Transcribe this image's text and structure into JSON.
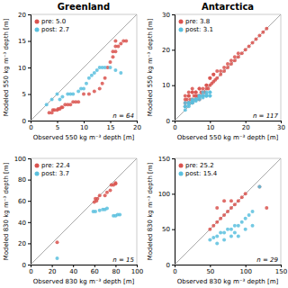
{
  "chart_data": [
    {
      "type": "scatter",
      "title": "Greenland",
      "xlabel": "Observed 550 kg m⁻³ depth [m]",
      "ylabel": "Modeled 550 kg m⁻³ depth [m]",
      "xlim": [
        0,
        20
      ],
      "ylim": [
        0,
        20
      ],
      "xticks": [
        0,
        5,
        10,
        15,
        20
      ],
      "yticks": [
        0,
        5,
        10,
        15,
        20
      ],
      "annotation": "n = 64",
      "legend": "upper left",
      "series": [
        {
          "name": "pre: 5.0",
          "color": "#d9534f",
          "x": [
            3.5,
            4,
            4.2,
            4.5,
            5,
            5.2,
            5.5,
            5.8,
            6,
            6.5,
            7,
            7.5,
            8,
            8.5,
            9,
            10,
            11,
            12,
            13,
            13.5,
            14,
            14.5,
            15,
            15.5,
            15.5,
            16,
            16,
            16.5,
            17,
            17.5,
            18,
            16
          ],
          "values": [
            1.5,
            1.5,
            2,
            2,
            2,
            2.2,
            2.2,
            2.5,
            2.5,
            3,
            3,
            3,
            3.5,
            3.5,
            3.5,
            5,
            5,
            5.5,
            6,
            7,
            8,
            10,
            11,
            12,
            13,
            13,
            14,
            14,
            14.5,
            15,
            15,
            15
          ]
        },
        {
          "name": "post: 2.7",
          "color": "#5bc0de",
          "x": [
            3,
            4,
            5,
            5.5,
            6,
            7,
            7.5,
            8,
            9,
            9.5,
            10,
            10.5,
            11,
            11.5,
            12,
            12.5,
            13,
            13.5,
            14,
            15,
            16,
            17
          ],
          "values": [
            3,
            4,
            5,
            4,
            4.5,
            5,
            5,
            5,
            5.5,
            6,
            6,
            7,
            8,
            8.5,
            9,
            9.5,
            10,
            10,
            10,
            10,
            9.5,
            9
          ]
        }
      ]
    },
    {
      "type": "scatter",
      "title": "Antarctica",
      "xlabel": "Observed 550 kg m⁻³ depth [m]",
      "ylabel": "Modeled 550 kg m⁻³ depth [m]",
      "xlim": [
        0,
        30
      ],
      "ylim": [
        0,
        30
      ],
      "xticks": [
        0,
        10,
        20,
        30
      ],
      "yticks": [
        0,
        10,
        20,
        30
      ],
      "annotation": "n = 117",
      "legend": "upper left",
      "series": [
        {
          "name": "pre: 3.8",
          "color": "#d9534f",
          "x": [
            3,
            3.5,
            4,
            4,
            4.5,
            5,
            5,
            5.5,
            6,
            6,
            6.5,
            7,
            7,
            7.5,
            8,
            8,
            8.5,
            9,
            9,
            9.5,
            10,
            10,
            10.5,
            11,
            11,
            11.5,
            12,
            13,
            14,
            15,
            16,
            17,
            18,
            19,
            20,
            21,
            22,
            23,
            24,
            25,
            26,
            4,
            5,
            6,
            7,
            8,
            9,
            10,
            11,
            12,
            13,
            14,
            15,
            16,
            17,
            18,
            3,
            4,
            5,
            6,
            7,
            3,
            4,
            5,
            6,
            7,
            3
          ],
          "values": [
            5,
            6,
            5,
            8,
            6,
            6,
            9,
            7,
            7,
            8,
            7,
            7,
            9,
            8,
            8,
            9,
            8,
            9,
            10,
            9,
            10,
            12,
            10.5,
            11,
            13,
            11.5,
            12,
            13,
            14,
            15,
            16,
            17,
            18,
            19,
            20,
            21,
            22,
            23,
            24,
            25,
            26,
            7,
            8,
            6,
            6,
            7,
            10,
            12,
            13,
            14,
            14,
            15,
            16,
            17,
            18,
            19,
            7,
            7,
            8,
            8,
            9,
            4,
            5,
            5,
            6,
            7,
            6
          ]
        },
        {
          "name": "post: 3.1",
          "color": "#5bc0de",
          "x": [
            3,
            4,
            5,
            6,
            7,
            8,
            9,
            10,
            4,
            5,
            6,
            7,
            8,
            9,
            10,
            5,
            6,
            7,
            8,
            9,
            10,
            3,
            4,
            5,
            6,
            7,
            8,
            9,
            3,
            4,
            5,
            6,
            7,
            8,
            9,
            10,
            3
          ],
          "values": [
            3,
            4,
            5,
            6,
            7,
            7,
            7,
            7,
            5,
            5.5,
            6,
            6.5,
            7,
            7,
            8,
            6,
            6,
            7,
            8,
            8,
            7,
            4,
            4.5,
            5,
            5.5,
            6,
            6.5,
            7,
            5,
            5,
            5.5,
            6,
            6.5,
            7,
            7.5,
            8,
            4
          ]
        }
      ]
    },
    {
      "type": "scatter",
      "xlabel": "Observed 830 kg m⁻³ depth [m]",
      "ylabel": "Modeled 830 kg m⁻³ depth [m]",
      "xlim": [
        0,
        100
      ],
      "ylim": [
        0,
        100
      ],
      "xticks": [
        0,
        20,
        40,
        60,
        80,
        100
      ],
      "yticks": [
        0,
        20,
        40,
        60,
        80,
        100
      ],
      "annotation": "n = 15",
      "legend": "upper left",
      "series": [
        {
          "name": "pre: 22.4",
          "color": "#d9534f",
          "x": [
            25,
            60,
            61,
            62,
            63,
            65,
            70,
            72,
            75,
            76,
            78,
            80,
            80
          ],
          "values": [
            21,
            59,
            62,
            60,
            62,
            65,
            65,
            68,
            70,
            75,
            75,
            76,
            77
          ]
        },
        {
          "name": "post: 3.7",
          "color": "#5bc0de",
          "x": [
            25,
            59,
            61,
            65,
            68,
            70,
            72,
            78,
            80,
            82,
            84
          ],
          "values": [
            6,
            50,
            50,
            51,
            52,
            52,
            53,
            46,
            46,
            47,
            47
          ]
        }
      ]
    },
    {
      "type": "scatter",
      "xlabel": "Observed 830 kg m⁻³ depth [m]",
      "ylabel": "Modeled 830 kg m⁻³ depth [m]",
      "xlim": [
        0,
        150
      ],
      "ylim": [
        0,
        150
      ],
      "xticks": [
        0,
        50,
        100,
        150
      ],
      "yticks": [
        0,
        50,
        100,
        150
      ],
      "annotation": "n = 29",
      "legend": "upper left",
      "series": [
        {
          "name": "pre: 25.2",
          "color": "#d9534f",
          "x": [
            50,
            55,
            60,
            60,
            65,
            70,
            70,
            75,
            80,
            80,
            85,
            90,
            95,
            100,
            120,
            130
          ],
          "values": [
            50,
            55,
            60,
            80,
            65,
            70,
            90,
            75,
            80,
            90,
            85,
            90,
            95,
            100,
            110,
            80
          ]
        },
        {
          "name": "post: 15.4",
          "color": "#5bc0de",
          "x": [
            50,
            55,
            60,
            65,
            70,
            75,
            80,
            85,
            90,
            95,
            100,
            105,
            110,
            60,
            70,
            80,
            85,
            90,
            100,
            110,
            120
          ],
          "values": [
            35,
            38,
            40,
            45,
            45,
            50,
            50,
            55,
            55,
            60,
            65,
            70,
            75,
            30,
            35,
            40,
            45,
            40,
            50,
            55,
            110
          ]
        }
      ]
    }
  ]
}
